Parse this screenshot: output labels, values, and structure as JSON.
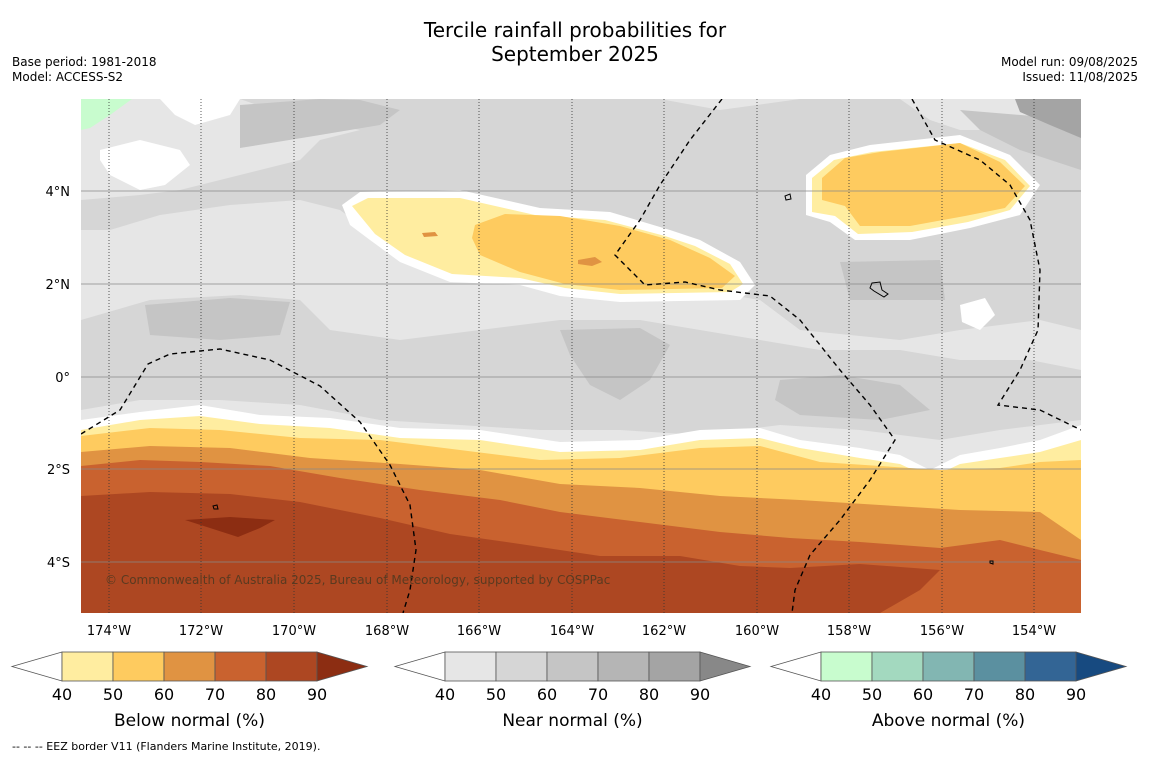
{
  "title_line1": "Tercile rainfall probabilities for",
  "title_line2": "September 2025",
  "meta_left": [
    "Base period: 1981-2018",
    "Model: ACCESS-S2"
  ],
  "meta_right": [
    "Model run: 09/08/2025",
    "Issued: 11/08/2025"
  ],
  "copyright": "© Commonwealth of Australia 2025, Bureau of Meteorology, supported by COSPPac",
  "footnote": "--  --  -- EEZ border V11 (Flanders Marine Institute, 2019).",
  "lon_labels": [
    "174°W",
    "172°W",
    "170°W",
    "168°W",
    "166°W",
    "164°W",
    "162°W",
    "160°W",
    "158°W",
    "156°W",
    "154°W"
  ],
  "lat_labels": [
    "4°N",
    "2°N",
    "0°",
    "2°S",
    "4°S"
  ],
  "colorbars": [
    {
      "title": "Below normal (%)",
      "ticks": [
        "40",
        "50",
        "60",
        "70",
        "80",
        "90"
      ],
      "colors": [
        "#ffeda0",
        "#fecb5f",
        "#e09342",
        "#c9622f",
        "#ad4722",
        "#8c2d12"
      ]
    },
    {
      "title": "Near normal (%)",
      "ticks": [
        "40",
        "50",
        "60",
        "70",
        "80",
        "90"
      ],
      "colors": [
        "#e6e6e6",
        "#d6d6d6",
        "#c5c5c5",
        "#b5b5b5",
        "#a4a4a4",
        "#888888"
      ]
    },
    {
      "title": "Above normal (%)",
      "ticks": [
        "40",
        "50",
        "60",
        "70",
        "80",
        "90"
      ],
      "colors": [
        "#c8fcce",
        "#a3d9bf",
        "#82b6b2",
        "#5b90a0",
        "#336595",
        "#174a80"
      ]
    }
  ]
}
